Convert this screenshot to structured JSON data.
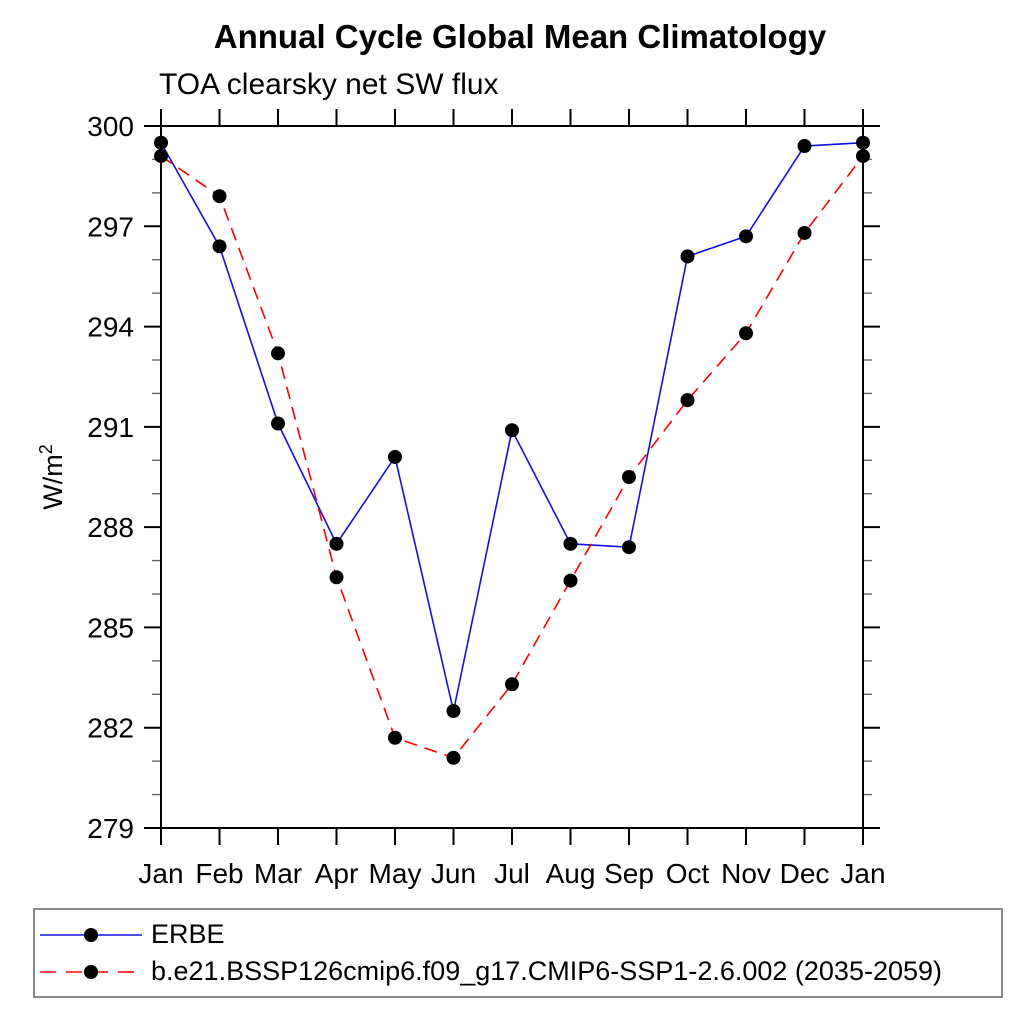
{
  "header": {
    "title": "Annual Cycle Global Mean Climatology",
    "subtitle": "TOA clearsky net SW flux"
  },
  "y_axis_label": {
    "base": "W/m",
    "exponent": "2"
  },
  "chart_data": {
    "type": "line",
    "title": "Annual Cycle Global Mean Climatology",
    "subtitle": "TOA clearsky net SW flux",
    "ylabel": "W/m2",
    "xlabel": "",
    "grid": false,
    "legend_position": "bottom-left-box",
    "x_tick_labels": [
      "Jan",
      "Feb",
      "Mar",
      "Apr",
      "May",
      "Jun",
      "Jul",
      "Aug",
      "Sep",
      "Oct",
      "Nov",
      "Dec",
      "Jan"
    ],
    "y_axis": {
      "min": 279,
      "max": 300,
      "major_ticks": [
        279,
        282,
        285,
        288,
        291,
        294,
        297,
        300
      ],
      "minor_step": 1
    },
    "series": [
      {
        "name": "ERBE",
        "line_color": "#1111dd",
        "line_style": "solid",
        "marker": "filled-circle",
        "marker_color": "#000000",
        "values": [
          299.5,
          296.4,
          291.1,
          287.5,
          290.1,
          282.5,
          290.9,
          287.5,
          287.4,
          296.1,
          296.7,
          299.4,
          299.5
        ]
      },
      {
        "name": "b.e21.BSSP126cmip6.f09_g17.CMIP6-SSP1-2.6.002 (2035-2059)",
        "line_color": "#ff0000",
        "line_style": "dashed",
        "marker": "filled-circle",
        "marker_color": "#000000",
        "values": [
          299.1,
          297.9,
          293.2,
          286.5,
          281.7,
          281.1,
          283.3,
          286.4,
          289.5,
          291.8,
          293.8,
          296.8,
          299.1
        ]
      }
    ]
  },
  "colors": {
    "axis": "#000000",
    "minor_tick": "#666666",
    "legend_border": "#888888",
    "background": "#ffffff"
  }
}
